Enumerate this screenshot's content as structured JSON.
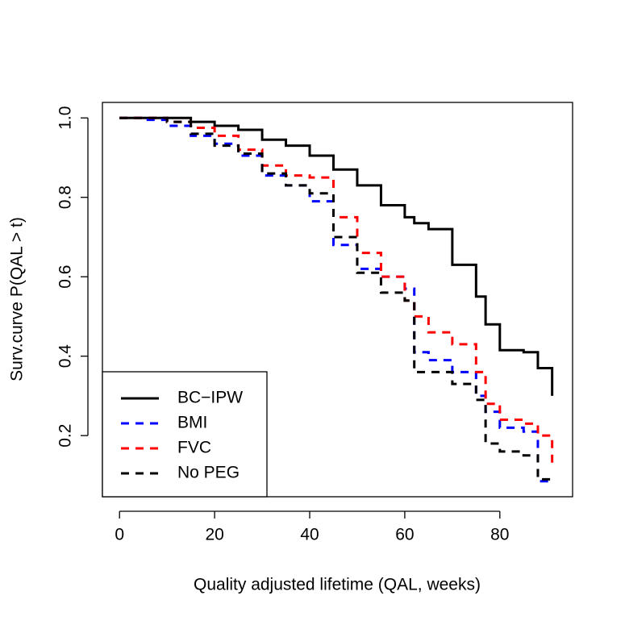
{
  "chart_data": {
    "type": "line",
    "step": true,
    "xlabel": "Quality adjusted lifetime (QAL, weeks)",
    "ylabel": "Surv.curve P(QAL > t)",
    "x": [
      0,
      5,
      10,
      15,
      20,
      25,
      30,
      35,
      40,
      45,
      50,
      55,
      60,
      62,
      65,
      70,
      75,
      77,
      80,
      85,
      88,
      91
    ],
    "series": [
      {
        "name": "BC−IPW",
        "color": "#000000",
        "dash": false,
        "values": [
          1.0,
          1.0,
          1.0,
          0.99,
          0.98,
          0.97,
          0.945,
          0.93,
          0.905,
          0.87,
          0.83,
          0.78,
          0.75,
          0.735,
          0.72,
          0.63,
          0.55,
          0.48,
          0.415,
          0.41,
          0.37,
          0.3
        ]
      },
      {
        "name": "BMI",
        "color": "#0000ff",
        "dash": true,
        "values": [
          1.0,
          0.995,
          0.98,
          0.955,
          0.935,
          0.905,
          0.855,
          0.83,
          0.79,
          0.68,
          0.62,
          0.6,
          0.57,
          0.41,
          0.39,
          0.36,
          0.3,
          0.26,
          0.22,
          0.21,
          0.085,
          0.08
        ]
      },
      {
        "name": "FVC",
        "color": "#ff0000",
        "dash": true,
        "values": [
          1.0,
          1.0,
          0.99,
          0.975,
          0.955,
          0.92,
          0.88,
          0.855,
          0.85,
          0.75,
          0.66,
          0.6,
          0.54,
          0.5,
          0.46,
          0.43,
          0.36,
          0.28,
          0.24,
          0.23,
          0.2,
          0.13
        ]
      },
      {
        "name": "No PEG",
        "color": "#000000",
        "dash": true,
        "values": [
          1.0,
          1.0,
          0.99,
          0.96,
          0.93,
          0.91,
          0.86,
          0.83,
          0.81,
          0.7,
          0.61,
          0.56,
          0.54,
          0.36,
          0.36,
          0.33,
          0.29,
          0.18,
          0.16,
          0.15,
          0.09,
          0.08
        ]
      }
    ],
    "xlim": [
      -3.6,
      95.3
    ],
    "ylim": [
      0.046,
      1.039
    ],
    "xticks": [
      0,
      20,
      40,
      60,
      80
    ],
    "yticks": [
      0.2,
      0.4,
      0.6,
      0.8,
      {
        "value": 1,
        "label": "1.0"
      }
    ],
    "legend": "bottom-left"
  }
}
